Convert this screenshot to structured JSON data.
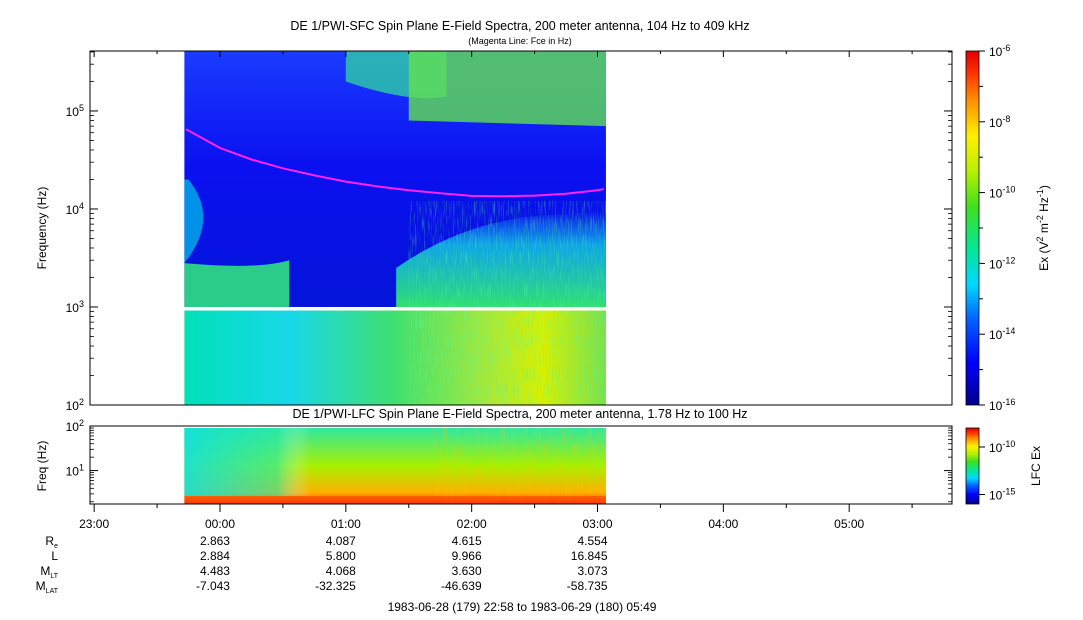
{
  "chart_data": [
    {
      "type": "heatmap",
      "title": "DE 1/PWI-SFC  Spin Plane E-Field Spectra, 200 meter antenna, 104 Hz to 409 kHz",
      "subtitle": "(Magenta Line: Fce in Hz)",
      "ylabel": "Frequency (Hz)",
      "yscale": "log",
      "ylim": [
        100,
        409000
      ],
      "ytick_labels": [
        {
          "base": "10",
          "exp": "2"
        },
        {
          "base": "10",
          "exp": "3"
        },
        {
          "base": "10",
          "exp": "4"
        },
        {
          "base": "10",
          "exp": "5"
        }
      ],
      "colorbar": {
        "label_parts": [
          {
            "text": "Ex (V",
            "sup": false
          },
          {
            "text": "2",
            "sup": true
          },
          {
            "text": " m",
            "sup": false
          },
          {
            "text": "-2",
            "sup": true
          },
          {
            "text": " Hz",
            "sup": false
          },
          {
            "text": "-1",
            "sup": true
          },
          {
            "text": ")",
            "sup": false
          }
        ],
        "scale": "log",
        "range": [
          1e-16,
          1e-06
        ],
        "tick_labels": [
          {
            "base": "10",
            "exp": "-6"
          },
          {
            "base": "10",
            "exp": "-8"
          },
          {
            "base": "10",
            "exp": "-10"
          },
          {
            "base": "10",
            "exp": "-12"
          },
          {
            "base": "10",
            "exp": "-14"
          },
          {
            "base": "10",
            "exp": "-16"
          }
        ]
      },
      "fce_line": {
        "color": "#ff22ff",
        "times_hours": [
          -0.27,
          0.0,
          0.25,
          0.5,
          0.75,
          1.0,
          1.25,
          1.5,
          1.75,
          2.0,
          2.25,
          2.5,
          2.75,
          3.0,
          3.05
        ],
        "values_hz": [
          65000,
          42000,
          32000,
          26000,
          22000,
          19000,
          17000,
          15500,
          14500,
          13600,
          13500,
          13700,
          14300,
          15500,
          16000
        ]
      }
    },
    {
      "type": "heatmap",
      "title": "DE 1/PWI-LFC  Spin Plane E-Field Spectra, 200 meter antenna, 1.78 Hz to 100 Hz",
      "ylabel": "Freq (Hz)",
      "yscale": "log",
      "ylim": [
        1.78,
        100
      ],
      "ytick_labels": [
        {
          "base": "10",
          "exp": "1"
        },
        {
          "base": "10",
          "exp": "2"
        }
      ],
      "colorbar": {
        "label_parts": [
          {
            "text": "LFC Ex",
            "sup": false
          }
        ],
        "scale": "log",
        "range": [
          1e-16,
          1e-08
        ],
        "tick_labels": [
          {
            "base": "10",
            "exp": "-10"
          },
          {
            "base": "10",
            "exp": "-15"
          }
        ]
      }
    }
  ],
  "time_axis": {
    "range_hours": [
      -1.033,
      5.817
    ],
    "data_range_hours": [
      -0.283,
      3.067
    ],
    "tick_labels": [
      "23:00",
      "00:00",
      "01:00",
      "02:00",
      "03:00",
      "04:00",
      "05:00"
    ]
  },
  "ephemeris": {
    "rows": [
      {
        "label": "R",
        "sub": "e",
        "values": [
          "2.863",
          "4.087",
          "4.615",
          "4.554"
        ]
      },
      {
        "label": "L",
        "sub": "",
        "values": [
          "2.884",
          "5.800",
          "9.966",
          "16.845"
        ]
      },
      {
        "label": "M",
        "sub": "LT",
        "values": [
          "4.483",
          "4.068",
          "3.630",
          "3.073"
        ]
      },
      {
        "label": "M",
        "sub": "LAT",
        "values": [
          "-7.043",
          "-32.325",
          "-46.639",
          "-58.735"
        ]
      }
    ]
  },
  "date_range_text": "1983-06-28 (179) 22:58 to 1983-06-29 (180) 05:49"
}
